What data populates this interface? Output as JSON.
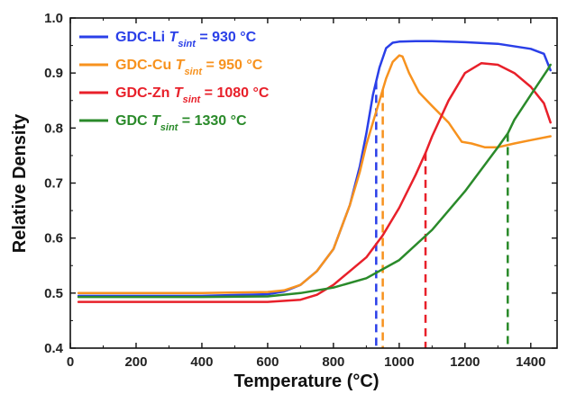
{
  "chart_data": {
    "type": "line",
    "xlabel": "Temperature (°C)",
    "ylabel": "Relative Density",
    "xlim": [
      0,
      1480
    ],
    "ylim": [
      0.4,
      1.0
    ],
    "x_ticks": [
      0,
      200,
      400,
      600,
      800,
      1000,
      1200,
      1400
    ],
    "x_tick_labels": [
      "0",
      "200",
      "400",
      "600",
      "800",
      "1000",
      "1200",
      "1400"
    ],
    "y_ticks": [
      0.4,
      0.5,
      0.6,
      0.7,
      0.8,
      0.9,
      1.0
    ],
    "y_tick_labels": [
      "0.4",
      "0.5",
      "0.6",
      "0.7",
      "0.8",
      "0.9",
      "1.0"
    ],
    "grid": false,
    "legend_position": "top-left",
    "series": [
      {
        "name": "GDC-Li",
        "legend_prefix": "GDC-Li",
        "legend_T": "T",
        "legend_sub": "sint",
        "legend_value": "= 930 °C",
        "color": "#2a3fe8",
        "t_sint": 930,
        "x": [
          25,
          200,
          400,
          600,
          650,
          700,
          750,
          800,
          850,
          880,
          900,
          920,
          940,
          960,
          980,
          1000,
          1050,
          1100,
          1200,
          1300,
          1400,
          1440,
          1460
        ],
        "y": [
          0.495,
          0.495,
          0.495,
          0.498,
          0.503,
          0.515,
          0.54,
          0.58,
          0.66,
          0.73,
          0.79,
          0.86,
          0.91,
          0.945,
          0.955,
          0.957,
          0.958,
          0.958,
          0.956,
          0.953,
          0.944,
          0.935,
          0.905
        ]
      },
      {
        "name": "GDC-Cu",
        "legend_prefix": "GDC-Cu",
        "legend_T": "T",
        "legend_sub": "sint",
        "legend_value": "= 950 °C",
        "color": "#f7921e",
        "t_sint": 950,
        "x": [
          25,
          200,
          400,
          600,
          650,
          700,
          750,
          800,
          850,
          880,
          900,
          920,
          940,
          960,
          980,
          1000,
          1010,
          1030,
          1060,
          1100,
          1150,
          1190,
          1220,
          1260,
          1300,
          1350,
          1400,
          1460
        ],
        "y": [
          0.5,
          0.5,
          0.5,
          0.502,
          0.505,
          0.515,
          0.54,
          0.58,
          0.66,
          0.72,
          0.77,
          0.81,
          0.85,
          0.89,
          0.92,
          0.932,
          0.93,
          0.9,
          0.865,
          0.84,
          0.81,
          0.775,
          0.772,
          0.765,
          0.765,
          0.772,
          0.778,
          0.785
        ]
      },
      {
        "name": "GDC-Zn",
        "legend_prefix": "GDC-Zn",
        "legend_T": "T",
        "legend_sub": "sint",
        "legend_value": "= 1080 °C",
        "color": "#e8202a",
        "t_sint": 1080,
        "x": [
          25,
          200,
          400,
          600,
          700,
          750,
          800,
          850,
          900,
          950,
          1000,
          1050,
          1080,
          1100,
          1150,
          1200,
          1250,
          1300,
          1350,
          1400,
          1440,
          1460
        ],
        "y": [
          0.484,
          0.484,
          0.484,
          0.484,
          0.488,
          0.497,
          0.515,
          0.54,
          0.565,
          0.605,
          0.655,
          0.715,
          0.755,
          0.785,
          0.85,
          0.9,
          0.918,
          0.915,
          0.9,
          0.875,
          0.845,
          0.81
        ]
      },
      {
        "name": "GDC",
        "legend_prefix": "GDC",
        "legend_T": "T",
        "legend_sub": "sint",
        "legend_value": "= 1330 °C",
        "color": "#2a8a2a",
        "t_sint": 1330,
        "x": [
          25,
          200,
          400,
          600,
          700,
          800,
          900,
          1000,
          1100,
          1200,
          1300,
          1330,
          1350,
          1400,
          1450,
          1460
        ],
        "y": [
          0.493,
          0.493,
          0.493,
          0.494,
          0.5,
          0.51,
          0.527,
          0.56,
          0.615,
          0.685,
          0.765,
          0.79,
          0.815,
          0.86,
          0.905,
          0.915
        ]
      }
    ]
  }
}
